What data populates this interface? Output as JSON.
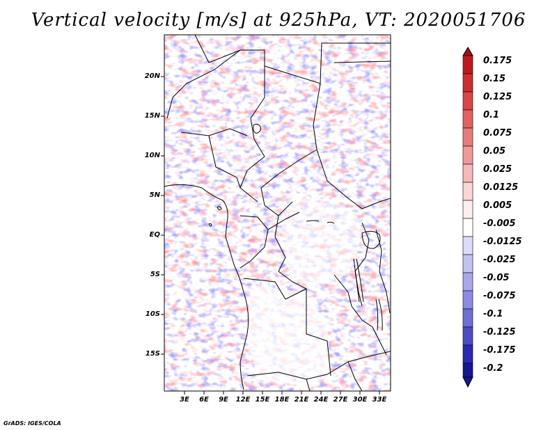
{
  "title": "Vertical velocity [m/s] at 925hPa, VT: 2020051706",
  "credit": "GrADS: IGES/COLA",
  "map": {
    "variable": "Vertical velocity",
    "units": "m/s",
    "level": "925hPa",
    "valid_time": "2020051706",
    "lat_labels": [
      "20N",
      "15N",
      "10N",
      "5N",
      "EQ",
      "5S",
      "10S",
      "15S"
    ],
    "lon_labels": [
      "3E",
      "6E",
      "9E",
      "12E",
      "15E",
      "18E",
      "21E",
      "24E",
      "27E",
      "30E",
      "33E"
    ]
  },
  "colorbar": {
    "levels": [
      "0.175",
      "0.15",
      "0.125",
      "0.1",
      "0.075",
      "0.05",
      "0.025",
      "0.0125",
      "0.005",
      "-0.005",
      "-0.0125",
      "-0.025",
      "-0.05",
      "-0.075",
      "-0.1",
      "-0.125",
      "-0.175",
      "-0.2"
    ],
    "colors": [
      "#a50f15",
      "#bd1a1f",
      "#cb2f2f",
      "#d84646",
      "#e26161",
      "#ea7b7b",
      "#f19999",
      "#f6b8b8",
      "#fad6d6",
      "#fcefef",
      "#ffffff",
      "#dcdcf8",
      "#c3c3f2",
      "#a8a8ea",
      "#8c8ce0",
      "#6f6fd4",
      "#4c4cc4",
      "#2a2aae",
      "#16168f"
    ]
  }
}
